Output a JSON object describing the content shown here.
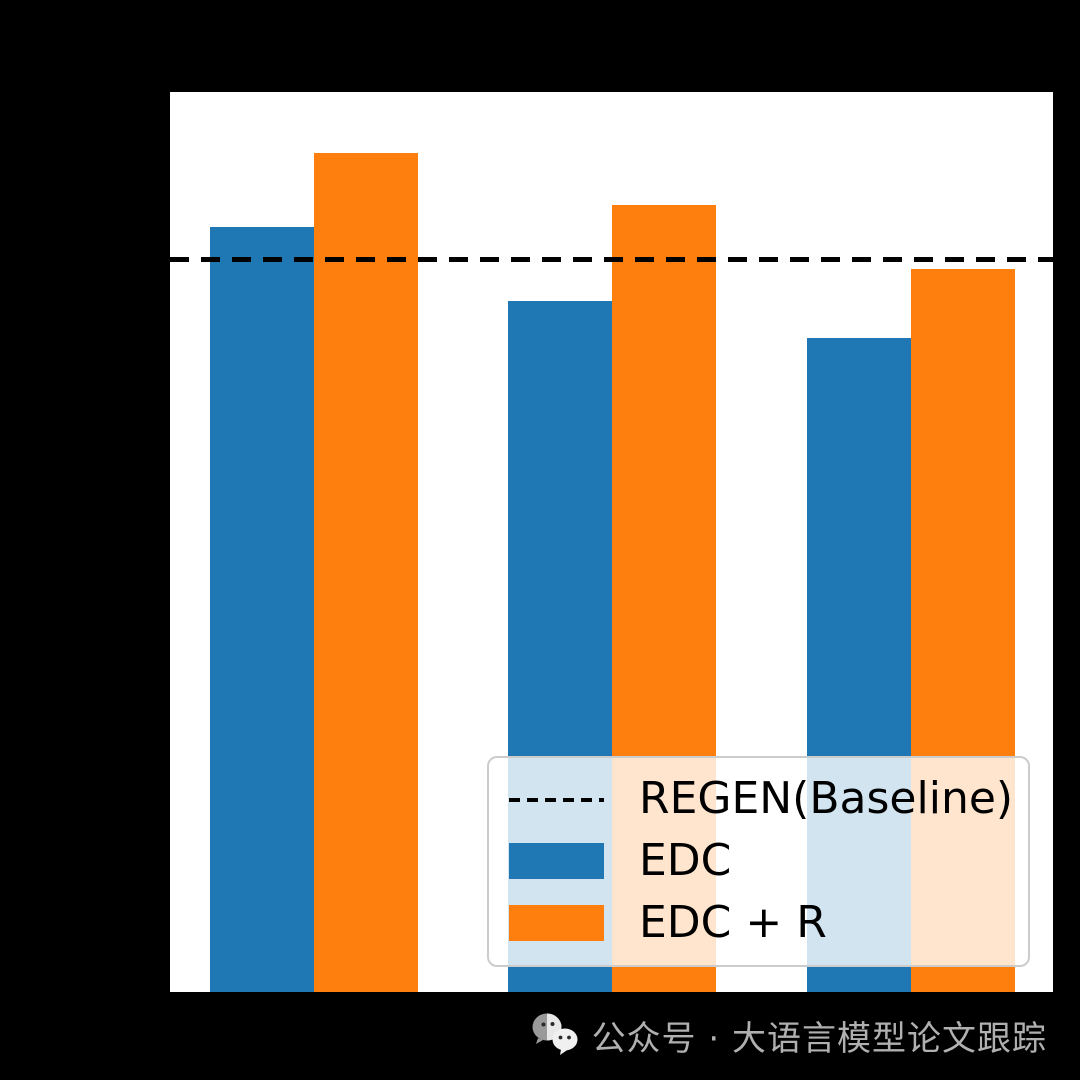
{
  "figure": {
    "background_color": "#000000",
    "plot_background_color": "#ffffff"
  },
  "chart_data": {
    "type": "bar",
    "title": "",
    "xlabel": "",
    "ylabel": "",
    "categories": [
      "",
      "",
      ""
    ],
    "series": [
      {
        "name": "EDC",
        "color": "#1f77b4",
        "values": [
          0.85,
          0.768,
          0.727
        ]
      },
      {
        "name": "EDC + R",
        "color": "#ff7f0e",
        "values": [
          0.932,
          0.874,
          0.803
        ]
      }
    ],
    "baseline": {
      "label": "REGEN(Baseline)",
      "value": 0.814,
      "style": "dashed",
      "color": "#000000"
    },
    "ylim": [
      0,
      1
    ],
    "grid": false,
    "legend_position": "lower right",
    "note": "Axis tick labels, axis titles and category labels are not visible in the image (rendered black-on-black); bar values are normalized fractions of the plot height read from pixels."
  },
  "legend": {
    "border_color": "#cccccc",
    "background": "rgba(255,255,255,0.8)"
  },
  "watermark": {
    "text": "公众号 · 大语言模型论文跟踪",
    "color": "#b0b0b0",
    "icon": "wechat-icon"
  }
}
